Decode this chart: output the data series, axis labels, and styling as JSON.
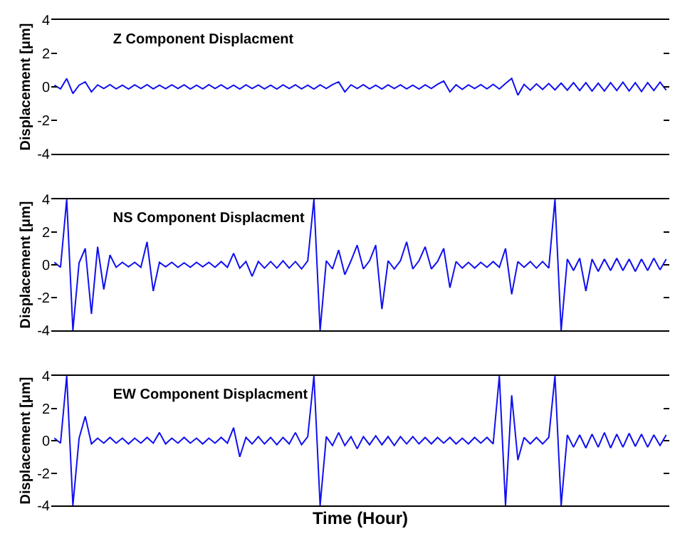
{
  "chart_data": [
    {
      "type": "line",
      "title": "Z Component Displacment",
      "ylabel": "Displacement [μm]",
      "ylim": [
        -4,
        4
      ],
      "yticks": [
        -4,
        -2,
        0,
        2,
        4
      ],
      "tick_labels": "y",
      "grid": false,
      "legend": false,
      "color": "#1010f0",
      "categories": [
        null,
        null,
        null,
        null,
        null,
        null,
        null,
        null,
        null,
        null,
        null,
        null,
        null,
        null,
        null,
        null,
        null,
        null,
        null,
        null,
        null,
        null,
        null,
        null,
        null,
        null,
        null,
        null,
        null,
        null,
        null,
        null,
        null,
        null,
        null,
        null,
        null,
        null,
        null,
        null,
        null,
        null,
        null,
        null,
        null,
        null,
        null,
        null,
        null,
        null,
        null,
        null,
        null,
        null,
        null,
        null,
        null,
        null,
        null,
        null,
        null,
        null,
        null,
        null,
        null,
        null,
        null,
        null,
        null,
        null,
        null,
        null,
        null,
        null,
        null,
        null,
        null,
        null,
        null,
        null,
        null,
        null,
        null,
        null,
        null,
        null,
        null,
        null,
        null,
        null,
        null,
        null,
        null,
        null,
        null,
        null,
        null,
        null,
        null,
        null
      ],
      "values": [
        0.1,
        -0.12,
        0.5,
        -0.4,
        0.1,
        0.3,
        -0.3,
        0.12,
        -0.1,
        0.13,
        -0.12,
        0.1,
        -0.13,
        0.12,
        -0.1,
        0.13,
        -0.12,
        0.1,
        -0.11,
        0.12,
        -0.1,
        0.12,
        -0.13,
        0.1,
        -0.12,
        0.13,
        -0.1,
        0.12,
        -0.12,
        0.1,
        -0.13,
        0.12,
        -0.1,
        0.11,
        -0.12,
        0.1,
        -0.13,
        0.12,
        -0.1,
        0.12,
        -0.12,
        0.1,
        -0.13,
        0.12,
        -0.1,
        0.13,
        0.3,
        -0.3,
        0.12,
        -0.1,
        0.13,
        -0.12,
        0.1,
        -0.13,
        0.12,
        -0.1,
        0.12,
        -0.12,
        0.1,
        -0.13,
        0.12,
        -0.1,
        0.15,
        0.35,
        -0.3,
        0.12,
        -0.15,
        0.12,
        -0.1,
        0.13,
        -0.12,
        0.15,
        -0.13,
        0.2,
        0.5,
        -0.5,
        0.15,
        -0.2,
        0.18,
        -0.15,
        0.2,
        -0.18,
        0.22,
        -0.2,
        0.25,
        -0.22,
        0.25,
        -0.25,
        0.22,
        -0.25,
        0.25,
        -0.22,
        0.28,
        -0.25,
        0.25,
        -0.28,
        0.25,
        -0.22,
        0.28,
        -0.2
      ]
    },
    {
      "type": "line",
      "title": "NS Component Displacment",
      "ylabel": "Displacement [μm]",
      "ylim": [
        -4,
        4
      ],
      "yticks": [
        -4,
        -2,
        0,
        2,
        4
      ],
      "tick_labels": "y",
      "grid": false,
      "legend": false,
      "color": "#1010f0",
      "categories": [
        null,
        null,
        null,
        null,
        null,
        null,
        null,
        null,
        null,
        null,
        null,
        null,
        null,
        null,
        null,
        null,
        null,
        null,
        null,
        null,
        null,
        null,
        null,
        null,
        null,
        null,
        null,
        null,
        null,
        null,
        null,
        null,
        null,
        null,
        null,
        null,
        null,
        null,
        null,
        null,
        null,
        null,
        null,
        null,
        null,
        null,
        null,
        null,
        null,
        null,
        null,
        null,
        null,
        null,
        null,
        null,
        null,
        null,
        null,
        null,
        null,
        null,
        null,
        null,
        null,
        null,
        null,
        null,
        null,
        null,
        null,
        null,
        null,
        null,
        null,
        null,
        null,
        null,
        null,
        null,
        null,
        null,
        null,
        null,
        null,
        null,
        null,
        null,
        null,
        null,
        null,
        null,
        null,
        null,
        null,
        null,
        null,
        null,
        null,
        null
      ],
      "values": [
        0.15,
        -0.15,
        4,
        -4,
        0.12,
        1.0,
        -3.0,
        1.1,
        -1.5,
        0.6,
        -0.15,
        0.15,
        -0.12,
        0.15,
        -0.15,
        1.4,
        -1.6,
        0.15,
        -0.12,
        0.15,
        -0.15,
        0.12,
        -0.15,
        0.15,
        -0.12,
        0.15,
        -0.15,
        0.2,
        -0.15,
        0.7,
        -0.2,
        0.2,
        -0.7,
        0.2,
        -0.2,
        0.2,
        -0.2,
        0.25,
        -0.2,
        0.2,
        -0.25,
        0.25,
        4,
        -4,
        0.25,
        -0.25,
        0.9,
        -0.6,
        0.25,
        1.2,
        -0.25,
        0.25,
        1.2,
        -2.7,
        0.25,
        -0.25,
        0.25,
        1.4,
        -0.25,
        0.25,
        1.1,
        -0.25,
        0.2,
        1.0,
        -1.4,
        0.2,
        -0.2,
        0.15,
        -0.2,
        0.15,
        -0.15,
        0.2,
        -0.15,
        1.0,
        -1.8,
        0.2,
        -0.15,
        0.2,
        -0.2,
        0.2,
        -0.2,
        4,
        -4,
        0.35,
        -0.35,
        0.4,
        -1.6,
        0.35,
        -0.4,
        0.35,
        -0.35,
        0.4,
        -0.35,
        0.35,
        -0.4,
        0.35,
        -0.35,
        0.4,
        -0.3,
        0.35
      ]
    },
    {
      "type": "line",
      "title": "EW Component Displacment",
      "xlabel": "Time (Hour)",
      "ylabel": "Displacement [μm]",
      "ylim": [
        -4,
        4
      ],
      "yticks": [
        -4,
        -2,
        0,
        2,
        4
      ],
      "tick_labels": "y",
      "grid": false,
      "legend": false,
      "color": "#1010f0",
      "categories": [
        null,
        null,
        null,
        null,
        null,
        null,
        null,
        null,
        null,
        null,
        null,
        null,
        null,
        null,
        null,
        null,
        null,
        null,
        null,
        null,
        null,
        null,
        null,
        null,
        null,
        null,
        null,
        null,
        null,
        null,
        null,
        null,
        null,
        null,
        null,
        null,
        null,
        null,
        null,
        null,
        null,
        null,
        null,
        null,
        null,
        null,
        null,
        null,
        null,
        null,
        null,
        null,
        null,
        null,
        null,
        null,
        null,
        null,
        null,
        null,
        null,
        null,
        null,
        null,
        null,
        null,
        null,
        null,
        null,
        null,
        null,
        null,
        null,
        null,
        null,
        null,
        null,
        null,
        null,
        null,
        null,
        null,
        null,
        null,
        null,
        null,
        null,
        null,
        null,
        null,
        null,
        null,
        null,
        null,
        null,
        null,
        null,
        null,
        null,
        null
      ],
      "values": [
        0.15,
        -0.15,
        4,
        -4,
        0.15,
        1.5,
        -0.2,
        0.15,
        -0.15,
        0.2,
        -0.15,
        0.15,
        -0.2,
        0.15,
        -0.15,
        0.2,
        -0.15,
        0.5,
        -0.2,
        0.15,
        -0.15,
        0.2,
        -0.15,
        0.15,
        -0.2,
        0.15,
        -0.15,
        0.2,
        -0.15,
        0.8,
        -1.0,
        0.2,
        -0.2,
        0.25,
        -0.2,
        0.2,
        -0.25,
        0.2,
        -0.2,
        0.5,
        -0.25,
        0.25,
        4,
        -4,
        0.25,
        -0.3,
        0.5,
        -0.3,
        0.25,
        -0.5,
        0.25,
        -0.25,
        0.3,
        -0.25,
        0.25,
        -0.3,
        0.25,
        -0.2,
        0.25,
        -0.2,
        0.2,
        -0.2,
        0.2,
        -0.15,
        0.2,
        -0.2,
        0.15,
        -0.2,
        0.2,
        -0.15,
        0.2,
        -0.2,
        4,
        -4,
        2.8,
        -1.2,
        0.2,
        -0.2,
        0.2,
        -0.2,
        0.2,
        4,
        -4,
        0.35,
        -0.4,
        0.35,
        -0.45,
        0.4,
        -0.4,
        0.5,
        -0.45,
        0.4,
        -0.4,
        0.45,
        -0.35,
        0.4,
        -0.4,
        0.35,
        -0.3,
        0.35
      ]
    }
  ]
}
